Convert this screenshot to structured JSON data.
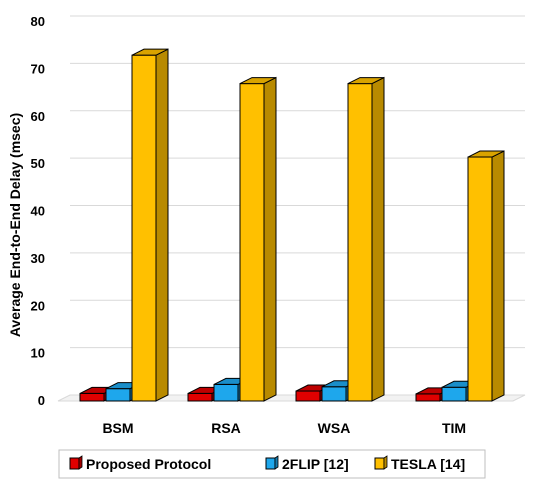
{
  "chart_data": {
    "type": "bar",
    "style": "3d-clustered-column",
    "categories": [
      "BSM",
      "RSA",
      "WSA",
      "TIM"
    ],
    "series": [
      {
        "name": "Proposed Protocol",
        "color": "#e00000",
        "values": [
          1.6,
          1.6,
          2.1,
          1.5
        ]
      },
      {
        "name": "2FLIP [12]",
        "color": "#1ea7ec",
        "values": [
          2.6,
          3.5,
          3.0,
          2.9
        ]
      },
      {
        "name": "TESLA [14]",
        "color": "#ffc000",
        "values": [
          73.0,
          67.0,
          67.0,
          51.5
        ]
      }
    ],
    "title": "",
    "xlabel": "",
    "ylabel": "Average End-to-End Delay (msec)",
    "ylim": [
      0,
      80
    ],
    "yticks": [
      "0",
      "10",
      "20",
      "30",
      "40",
      "50",
      "60",
      "70",
      "80"
    ],
    "grid": true,
    "legend_position": "bottom"
  }
}
